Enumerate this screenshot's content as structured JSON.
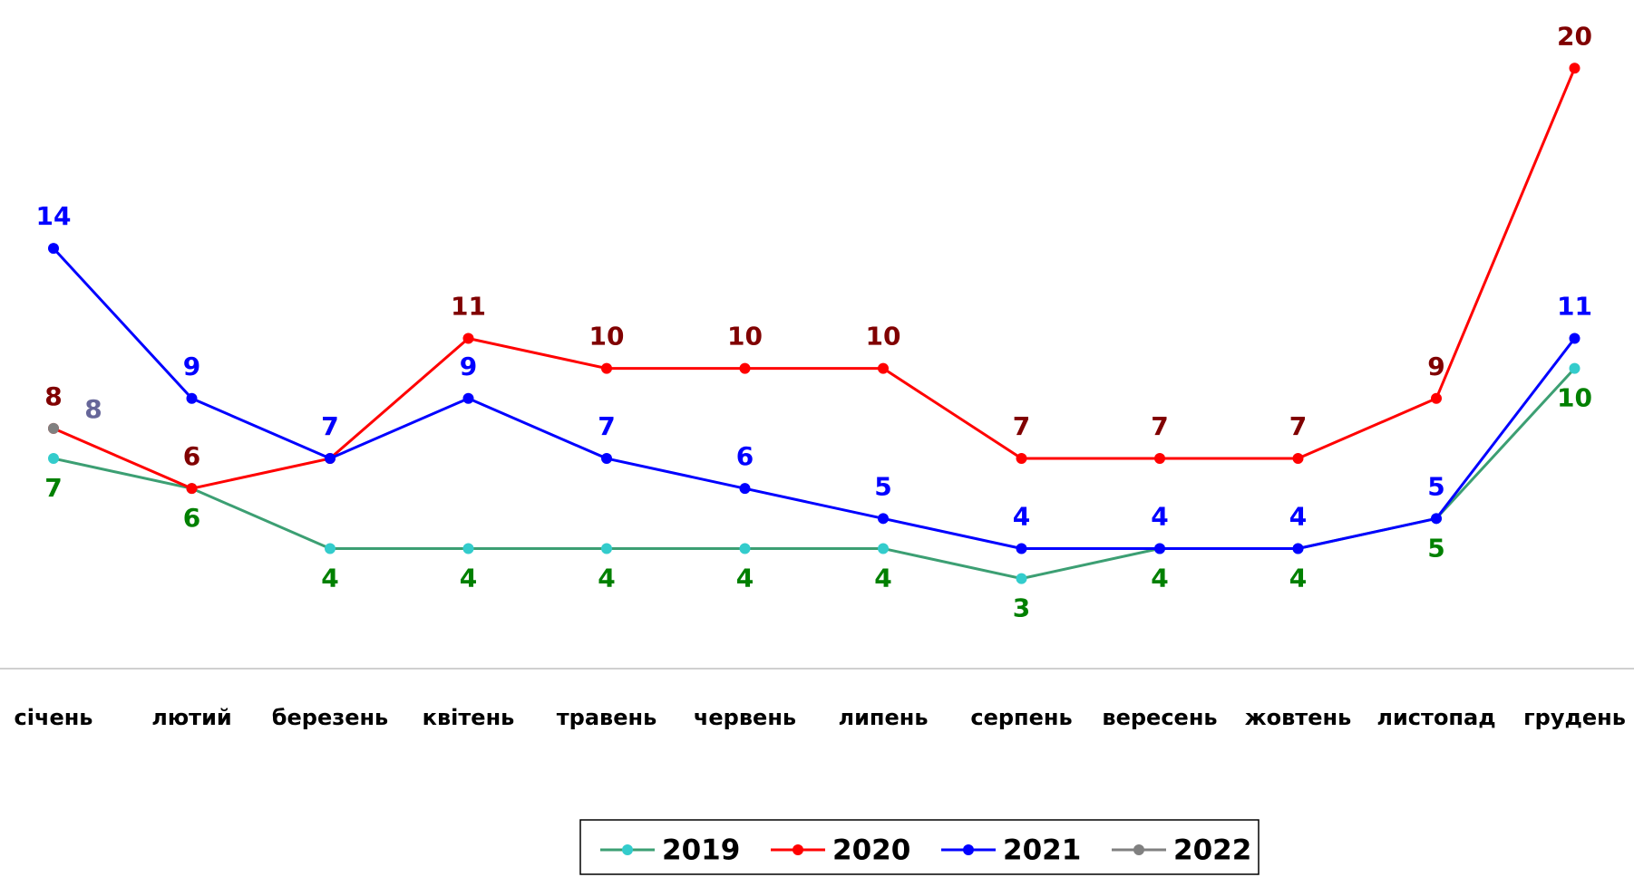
{
  "chart_data": {
    "type": "line",
    "categories": [
      "січень",
      "лютий",
      "березень",
      "квітень",
      "травень",
      "червень",
      "липень",
      "серпень",
      "вересень",
      "жовтень",
      "листопад",
      "грудень"
    ],
    "series": [
      {
        "name": "2019",
        "color": "#3c9f73",
        "marker_color": "#33cccc",
        "label_color": "#008000",
        "values": [
          7,
          6,
          4,
          4,
          4,
          4,
          4,
          3,
          4,
          4,
          5,
          10
        ]
      },
      {
        "name": "2020",
        "color": "#ff0000",
        "marker_color": "#ff0000",
        "label_color": "#800000",
        "values": [
          8,
          6,
          7,
          11,
          10,
          10,
          10,
          7,
          7,
          7,
          9,
          20
        ]
      },
      {
        "name": "2021",
        "color": "#0000ff",
        "marker_color": "#0000ff",
        "label_color": "#0000ff",
        "values": [
          14,
          9,
          7,
          9,
          7,
          6,
          5,
          4,
          4,
          4,
          5,
          11
        ]
      },
      {
        "name": "2022",
        "color": "#808080",
        "marker_color": "#808080",
        "label_color": "#666699",
        "values": [
          8,
          null,
          null,
          null,
          null,
          null,
          null,
          null,
          null,
          null,
          null,
          null
        ]
      }
    ],
    "ylim": [
      0,
      22
    ],
    "legend": "bottom"
  }
}
